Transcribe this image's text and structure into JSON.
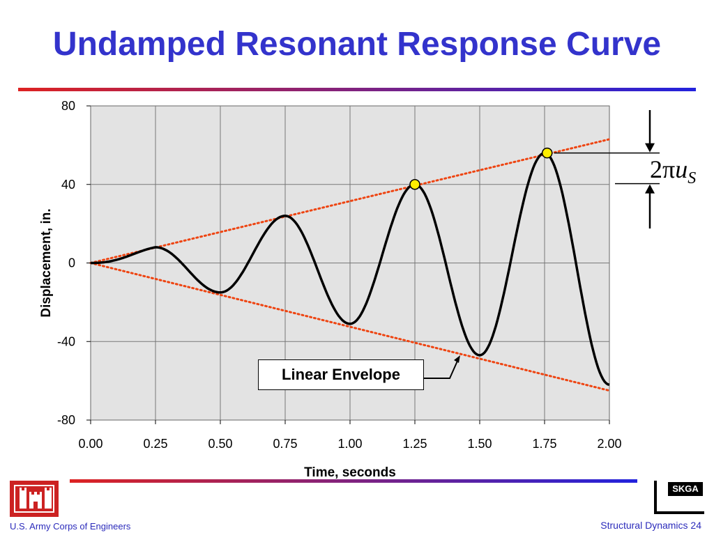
{
  "slide": {
    "title": "Undamped Resonant Response Curve",
    "footer_left": "U.S. Army Corps of Engineers",
    "footer_right": "Structural Dynamics 24",
    "logo_text": "SKGA",
    "rule_colors": [
      "#dd2222",
      "#2222dd"
    ],
    "title_color": "#3333cc"
  },
  "chart_data": {
    "type": "line",
    "xlabel": "Time, seconds",
    "ylabel": "Displacement, in.",
    "xlim": [
      0,
      2
    ],
    "ylim": [
      -80,
      80
    ],
    "xticks": [
      "0.00",
      "0.25",
      "0.50",
      "0.75",
      "1.00",
      "1.25",
      "1.50",
      "1.75",
      "2.00"
    ],
    "yticks": [
      "80",
      "40",
      "0",
      "-40",
      "-80"
    ],
    "grid": true,
    "plot_background": "#e3e3e3",
    "series": [
      {
        "style": "solid",
        "color": "#000000",
        "peaks": [
          {
            "t": 0.25,
            "u": 8
          },
          {
            "t": 0.5,
            "u": -15
          },
          {
            "t": 0.75,
            "u": 24
          },
          {
            "t": 1.0,
            "u": -31
          },
          {
            "t": 1.25,
            "u": 40
          },
          {
            "t": 1.5,
            "u": -47
          },
          {
            "t": 1.75,
            "u": 56
          },
          {
            "t": 2.0,
            "u": -62
          }
        ]
      },
      {
        "style": "dotted",
        "color": "#ee4411",
        "x": [
          0,
          2
        ],
        "y": [
          0,
          63
        ]
      },
      {
        "style": "dotted",
        "color": "#ee4411",
        "x": [
          0,
          2
        ],
        "y": [
          0,
          -65
        ]
      }
    ],
    "markers": [
      {
        "x": 1.25,
        "y": 40,
        "color": "#ffee00"
      },
      {
        "x": 1.76,
        "y": 56,
        "color": "#ffee00"
      }
    ],
    "annotations": {
      "envelope_label": "Linear Envelope",
      "amplitude_label": {
        "prefix": "2π",
        "var": "u",
        "sub": "S"
      }
    }
  }
}
